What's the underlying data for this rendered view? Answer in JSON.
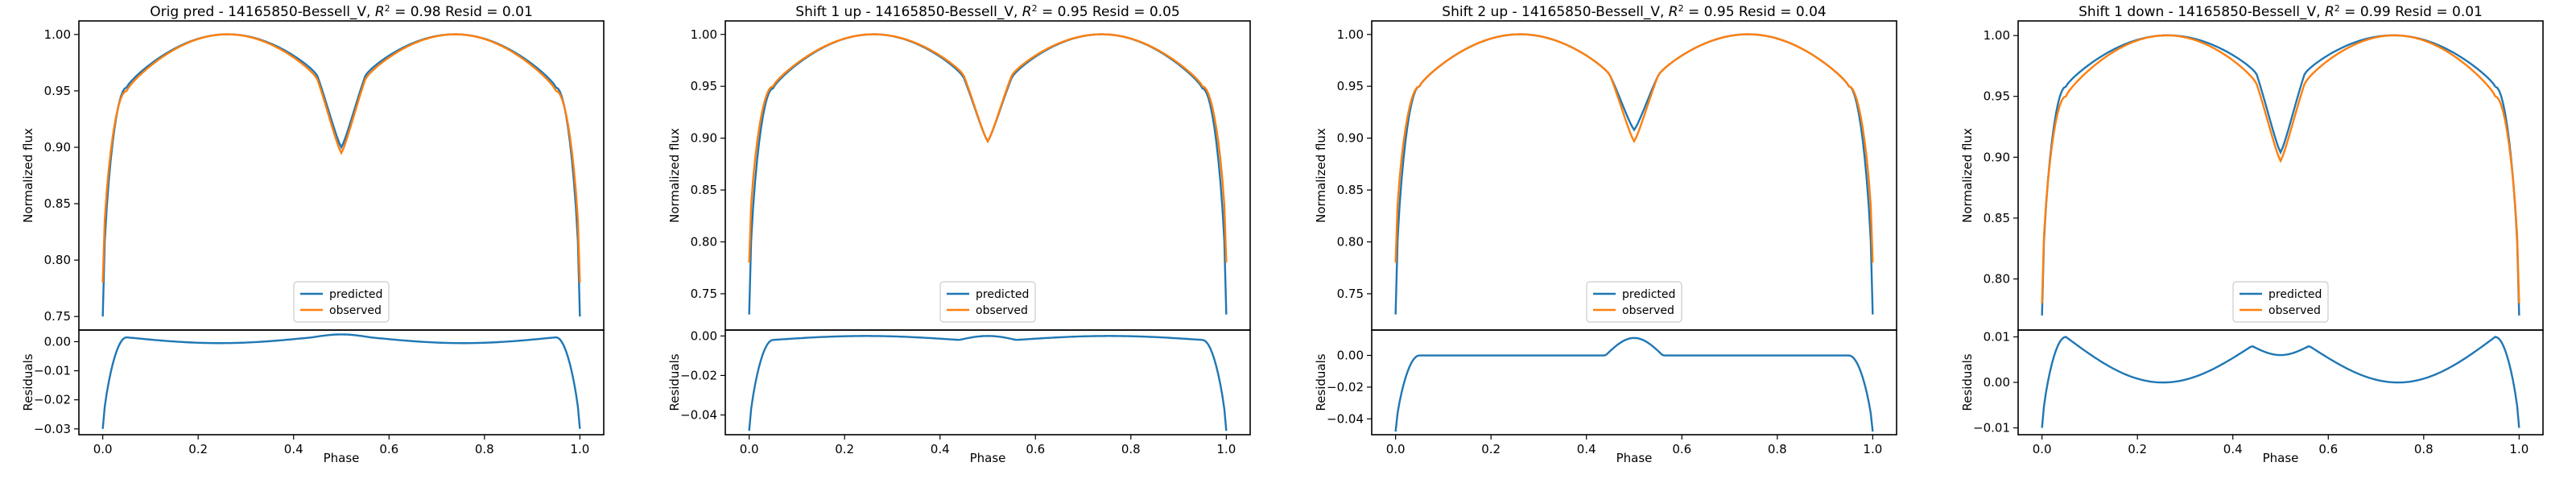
{
  "colors": {
    "predicted": "#1f77b4",
    "observed": "#ff7f0e"
  },
  "chart_data": [
    {
      "type": "line",
      "title": "Orig pred - 14165850-Bessell_V, $R^2 = 0.98$ Resid = 0.01",
      "title_text": "Orig pred - 14165850-Bessell_V, ",
      "title_r2": "R",
      "title_r2_sup": "2",
      "title_tail": " = 0.98 Resid = 0.01",
      "xlabel": "Phase",
      "ylabel": "Normalized flux",
      "resid_ylabel": "Residuals",
      "xlim": [
        -0.05,
        1.05
      ],
      "ylim": [
        0.738,
        1.012
      ],
      "yticks": [
        0.75,
        0.8,
        0.85,
        0.9,
        0.95,
        1.0
      ],
      "ytick_labels": [
        "0.75",
        "0.80",
        "0.85",
        "0.90",
        "0.95",
        "1.00"
      ],
      "xticks": [
        0.0,
        0.2,
        0.4,
        0.6,
        0.8,
        1.0
      ],
      "xtick_labels": [
        "0.0",
        "0.2",
        "0.4",
        "0.6",
        "0.8",
        "1.0"
      ],
      "resid_ylim": [
        -0.032,
        0.004
      ],
      "resid_yticks": [
        0.0,
        -0.01,
        -0.02,
        -0.03
      ],
      "resid_ytick_labels": [
        "0.00",
        "−0.01",
        "−0.02",
        "−0.03"
      ],
      "legend": [
        "predicted",
        "observed"
      ],
      "legend_position": "lower center",
      "series": [
        {
          "name": "predicted",
          "x": [
            0.0,
            0.05,
            0.25,
            0.45,
            0.5,
            0.55,
            0.75,
            0.95,
            1.0
          ],
          "values": [
            0.75,
            0.953,
            1.0,
            0.963,
            0.9,
            0.963,
            1.0,
            0.953,
            0.75
          ]
        },
        {
          "name": "observed",
          "x": [
            0.0,
            0.05,
            0.25,
            0.45,
            0.5,
            0.55,
            0.75,
            0.95,
            1.0
          ],
          "values": [
            0.78,
            0.95,
            1.0,
            0.96,
            0.895,
            0.96,
            1.0,
            0.95,
            0.78
          ]
        }
      ],
      "residuals": {
        "name": "residuals",
        "x": [
          0.0,
          0.05,
          0.25,
          0.45,
          0.5,
          0.55,
          0.75,
          0.95,
          1.0
        ],
        "values": [
          -0.03,
          0.0015,
          -0.0005,
          0.0015,
          0.0025,
          0.0015,
          -0.0005,
          0.0015,
          -0.03
        ]
      }
    },
    {
      "type": "line",
      "title": "Shift 1 up - 14165850-Bessell_V, $R^2 = 0.95$ Resid = 0.05",
      "title_text": "Shift 1 up - 14165850-Bessell_V, ",
      "title_r2": "R",
      "title_r2_sup": "2",
      "title_tail": " = 0.95 Resid = 0.05",
      "xlabel": "Phase",
      "ylabel": "Normalized flux",
      "resid_ylabel": "Residuals",
      "xlim": [
        -0.05,
        1.05
      ],
      "ylim": [
        0.715,
        1.013
      ],
      "yticks": [
        0.75,
        0.8,
        0.85,
        0.9,
        0.95,
        1.0
      ],
      "ytick_labels": [
        "0.75",
        "0.80",
        "0.85",
        "0.90",
        "0.95",
        "1.00"
      ],
      "xticks": [
        0.0,
        0.2,
        0.4,
        0.6,
        0.8,
        1.0
      ],
      "xtick_labels": [
        "0.0",
        "0.2",
        "0.4",
        "0.6",
        "0.8",
        "1.0"
      ],
      "resid_ylim": [
        -0.05,
        0.003
      ],
      "resid_yticks": [
        0.0,
        -0.02,
        -0.04
      ],
      "resid_ytick_labels": [
        "0.00",
        "−0.02",
        "−0.04"
      ],
      "legend": [
        "predicted",
        "observed"
      ],
      "legend_position": "lower center",
      "series": [
        {
          "name": "predicted",
          "x": [
            0.0,
            0.05,
            0.25,
            0.45,
            0.5,
            0.55,
            0.75,
            0.95,
            1.0
          ],
          "values": [
            0.73,
            0.948,
            1.0,
            0.958,
            0.897,
            0.958,
            1.0,
            0.948,
            0.73
          ]
        },
        {
          "name": "observed",
          "x": [
            0.0,
            0.05,
            0.25,
            0.45,
            0.5,
            0.55,
            0.75,
            0.95,
            1.0
          ],
          "values": [
            0.78,
            0.95,
            1.0,
            0.96,
            0.897,
            0.96,
            1.0,
            0.95,
            0.78
          ]
        }
      ],
      "residuals": {
        "name": "residuals",
        "x": [
          0.0,
          0.05,
          0.25,
          0.45,
          0.5,
          0.55,
          0.75,
          0.95,
          1.0
        ],
        "values": [
          -0.048,
          -0.002,
          0.0,
          -0.002,
          0.0,
          -0.002,
          0.0,
          -0.002,
          -0.048
        ]
      }
    },
    {
      "type": "line",
      "title": "Shift 2 up - 14165850-Bessell_V, $R^2 = 0.95$ Resid = 0.04",
      "title_text": "Shift 2 up - 14165850-Bessell_V, ",
      "title_r2": "R",
      "title_r2_sup": "2",
      "title_tail": " = 0.95 Resid = 0.04",
      "xlabel": "Phase",
      "ylabel": "Normalized flux",
      "resid_ylabel": "Residuals",
      "xlim": [
        -0.05,
        1.05
      ],
      "ylim": [
        0.715,
        1.013
      ],
      "yticks": [
        0.75,
        0.8,
        0.85,
        0.9,
        0.95,
        1.0
      ],
      "ytick_labels": [
        "0.75",
        "0.80",
        "0.85",
        "0.90",
        "0.95",
        "1.00"
      ],
      "xticks": [
        0.0,
        0.2,
        0.4,
        0.6,
        0.8,
        1.0
      ],
      "xtick_labels": [
        "0.0",
        "0.2",
        "0.4",
        "0.6",
        "0.8",
        "1.0"
      ],
      "resid_ylim": [
        -0.05,
        0.016
      ],
      "resid_yticks": [
        0.0,
        -0.02,
        -0.04
      ],
      "resid_ytick_labels": [
        "0.00",
        "−0.02",
        "−0.04"
      ],
      "legend": [
        "predicted",
        "observed"
      ],
      "legend_position": "lower center",
      "series": [
        {
          "name": "predicted",
          "x": [
            0.0,
            0.05,
            0.25,
            0.45,
            0.5,
            0.55,
            0.75,
            0.95,
            1.0
          ],
          "values": [
            0.73,
            0.95,
            1.0,
            0.96,
            0.908,
            0.96,
            1.0,
            0.95,
            0.73
          ]
        },
        {
          "name": "observed",
          "x": [
            0.0,
            0.05,
            0.25,
            0.45,
            0.5,
            0.55,
            0.75,
            0.95,
            1.0
          ],
          "values": [
            0.78,
            0.95,
            1.0,
            0.96,
            0.897,
            0.96,
            1.0,
            0.95,
            0.78
          ]
        }
      ],
      "residuals": {
        "name": "residuals",
        "x": [
          0.0,
          0.05,
          0.25,
          0.45,
          0.5,
          0.55,
          0.75,
          0.95,
          1.0
        ],
        "values": [
          -0.048,
          0.0,
          0.0,
          0.0,
          0.011,
          0.0,
          0.0,
          0.0,
          -0.048
        ]
      }
    },
    {
      "type": "line",
      "title": "Shift 1 down - 14165850-Bessell_V, $R^2 = 0.99$ Resid = 0.01",
      "title_text": "Shift 1 down - 14165850-Bessell_V, ",
      "title_r2": "R",
      "title_r2_sup": "2",
      "title_tail": " = 0.99 Resid = 0.01",
      "xlabel": "Phase",
      "ylabel": "Normalized flux",
      "resid_ylabel": "Residuals",
      "xlim": [
        -0.05,
        1.05
      ],
      "ylim": [
        0.758,
        1.012
      ],
      "yticks": [
        0.8,
        0.85,
        0.9,
        0.95,
        1.0
      ],
      "ytick_labels": [
        "0.80",
        "0.85",
        "0.90",
        "0.95",
        "1.00"
      ],
      "xticks": [
        0.0,
        0.2,
        0.4,
        0.6,
        0.8,
        1.0
      ],
      "xtick_labels": [
        "0.0",
        "0.2",
        "0.4",
        "0.6",
        "0.8",
        "1.0"
      ],
      "resid_ylim": [
        -0.0115,
        0.0115
      ],
      "resid_yticks": [
        0.01,
        0.0,
        -0.01
      ],
      "resid_ytick_labels": [
        "0.01",
        "0.00",
        "−0.01"
      ],
      "legend": [
        "predicted",
        "observed"
      ],
      "legend_position": "lower center",
      "series": [
        {
          "name": "predicted",
          "x": [
            0.0,
            0.05,
            0.25,
            0.45,
            0.5,
            0.55,
            0.75,
            0.95,
            1.0
          ],
          "values": [
            0.77,
            0.958,
            1.0,
            0.968,
            0.904,
            0.968,
            1.0,
            0.958,
            0.77
          ]
        },
        {
          "name": "observed",
          "x": [
            0.0,
            0.05,
            0.25,
            0.45,
            0.5,
            0.55,
            0.75,
            0.95,
            1.0
          ],
          "values": [
            0.78,
            0.95,
            1.0,
            0.96,
            0.897,
            0.96,
            1.0,
            0.95,
            0.78
          ]
        }
      ],
      "residuals": {
        "name": "residuals",
        "x": [
          0.0,
          0.05,
          0.25,
          0.45,
          0.5,
          0.55,
          0.75,
          0.95,
          1.0
        ],
        "values": [
          -0.01,
          0.01,
          0.0,
          0.008,
          0.006,
          0.008,
          0.0,
          0.01,
          -0.01
        ]
      }
    }
  ]
}
